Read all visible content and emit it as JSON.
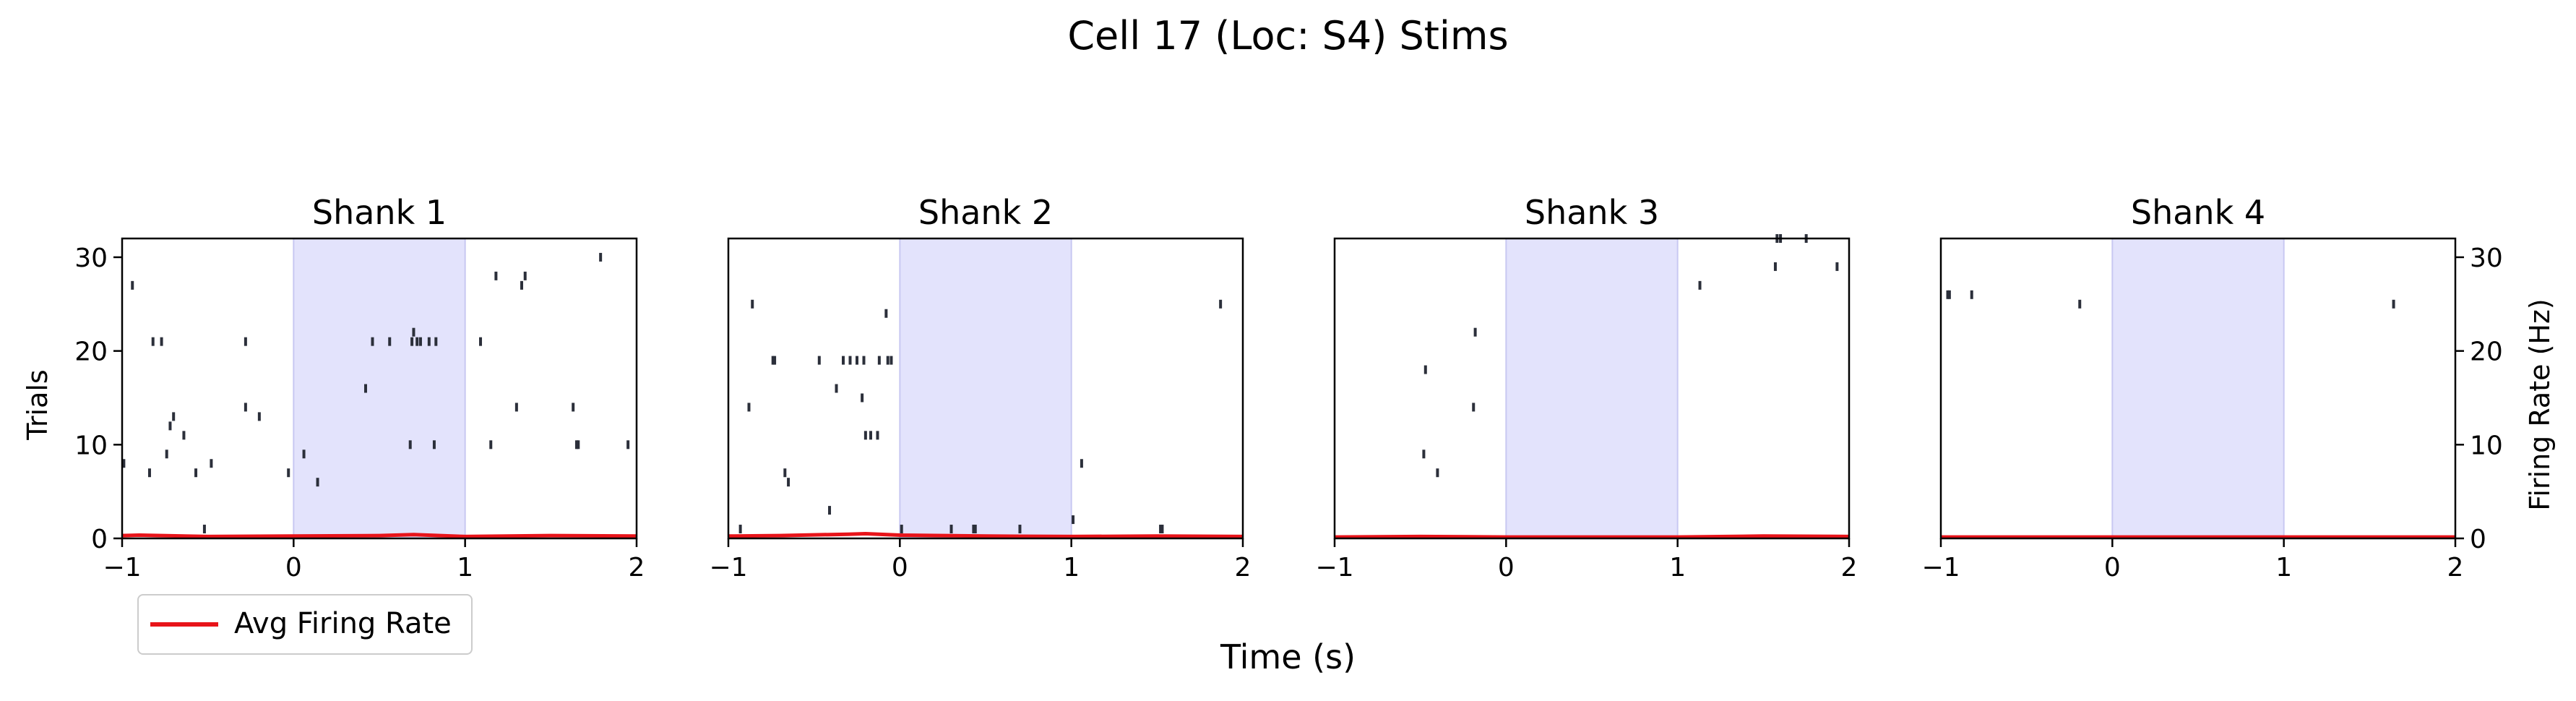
{
  "chart_data": {
    "type": "raster",
    "title": "Cell 17 (Loc: S4) Stims",
    "xlabel": "Time (s)",
    "ylabel_left": "Trials",
    "ylabel_right": "Firing Rate (Hz)",
    "xlim": [
      -1,
      2
    ],
    "ylim": [
      0,
      32
    ],
    "xticks": [
      -1,
      0,
      1,
      2
    ],
    "xtick_labels": [
      "−1",
      "0",
      "1",
      "2"
    ],
    "yticks": [
      0,
      10,
      20,
      30
    ],
    "ytick_labels": [
      "0",
      "10",
      "20",
      "30"
    ],
    "stim_window": [
      0,
      1
    ],
    "colors": {
      "spike": "#2b2f3a",
      "rate": "#e8141a",
      "stim": "#e3e3fc",
      "stim_edge": "#c8c8f2"
    },
    "legend": {
      "label": "Avg Firing Rate",
      "placement": "lower-left, below first panel"
    },
    "panels": [
      {
        "title": "Shank 1",
        "spikes": [
          [
            -0.99,
            8
          ],
          [
            -0.94,
            27
          ],
          [
            -0.84,
            7
          ],
          [
            -0.82,
            21
          ],
          [
            -0.77,
            21
          ],
          [
            -0.74,
            9
          ],
          [
            -0.72,
            12
          ],
          [
            -0.7,
            13
          ],
          [
            -0.64,
            11
          ],
          [
            -0.57,
            7
          ],
          [
            -0.52,
            1
          ],
          [
            -0.48,
            8
          ],
          [
            -0.28,
            21
          ],
          [
            -0.28,
            14
          ],
          [
            -0.2,
            13
          ],
          [
            -0.03,
            7
          ],
          [
            0.06,
            9
          ],
          [
            0.14,
            6
          ],
          [
            0.42,
            16
          ],
          [
            0.46,
            21
          ],
          [
            0.56,
            21
          ],
          [
            0.68,
            10
          ],
          [
            0.69,
            21
          ],
          [
            0.7,
            22
          ],
          [
            0.72,
            21
          ],
          [
            0.74,
            21
          ],
          [
            0.79,
            21
          ],
          [
            0.82,
            10
          ],
          [
            0.83,
            21
          ],
          [
            1.09,
            21
          ],
          [
            1.15,
            10
          ],
          [
            1.18,
            28
          ],
          [
            1.3,
            14
          ],
          [
            1.33,
            27
          ],
          [
            1.35,
            28
          ],
          [
            1.63,
            14
          ],
          [
            1.65,
            10
          ],
          [
            1.66,
            10
          ],
          [
            1.79,
            30
          ],
          [
            1.95,
            10
          ]
        ],
        "rate": [
          [
            -1,
            0.3
          ],
          [
            -0.9,
            0.35
          ],
          [
            -0.5,
            0.2
          ],
          [
            0,
            0.25
          ],
          [
            0.5,
            0.3
          ],
          [
            0.7,
            0.4
          ],
          [
            1,
            0.2
          ],
          [
            1.5,
            0.3
          ],
          [
            2,
            0.25
          ]
        ]
      },
      {
        "title": "Shank 2",
        "spikes": [
          [
            -0.93,
            1
          ],
          [
            -0.88,
            14
          ],
          [
            -0.86,
            25
          ],
          [
            -0.74,
            19
          ],
          [
            -0.73,
            19
          ],
          [
            -0.67,
            7
          ],
          [
            -0.65,
            6
          ],
          [
            -0.47,
            19
          ],
          [
            -0.41,
            3
          ],
          [
            -0.37,
            16
          ],
          [
            -0.33,
            19
          ],
          [
            -0.29,
            19
          ],
          [
            -0.25,
            19
          ],
          [
            -0.22,
            15
          ],
          [
            -0.21,
            19
          ],
          [
            -0.2,
            11
          ],
          [
            -0.17,
            11
          ],
          [
            -0.13,
            11
          ],
          [
            -0.12,
            19
          ],
          [
            -0.08,
            24
          ],
          [
            -0.07,
            19
          ],
          [
            -0.05,
            19
          ],
          [
            0.01,
            1
          ],
          [
            0.3,
            1
          ],
          [
            0.43,
            1
          ],
          [
            0.44,
            1
          ],
          [
            0.7,
            1
          ],
          [
            1.01,
            2
          ],
          [
            1.06,
            8
          ],
          [
            1.52,
            1
          ],
          [
            1.53,
            1
          ],
          [
            1.87,
            25
          ]
        ],
        "rate": [
          [
            -1,
            0.25
          ],
          [
            -0.7,
            0.3
          ],
          [
            -0.3,
            0.45
          ],
          [
            -0.2,
            0.5
          ],
          [
            0,
            0.35
          ],
          [
            0.5,
            0.25
          ],
          [
            1,
            0.2
          ],
          [
            1.5,
            0.25
          ],
          [
            2,
            0.2
          ]
        ]
      },
      {
        "title": "Shank 3",
        "spikes": [
          [
            -0.48,
            9
          ],
          [
            -0.47,
            18
          ],
          [
            -0.4,
            7
          ],
          [
            -0.19,
            14
          ],
          [
            -0.18,
            22
          ],
          [
            1.13,
            27
          ],
          [
            1.57,
            29
          ],
          [
            1.58,
            32
          ],
          [
            1.6,
            32
          ],
          [
            1.75,
            32
          ],
          [
            1.93,
            29
          ]
        ],
        "rate": [
          [
            -1,
            0.15
          ],
          [
            -0.5,
            0.2
          ],
          [
            0,
            0.15
          ],
          [
            0.5,
            0.15
          ],
          [
            1,
            0.15
          ],
          [
            1.5,
            0.25
          ],
          [
            2,
            0.2
          ]
        ]
      },
      {
        "title": "Shank 4",
        "spikes": [
          [
            -0.96,
            26
          ],
          [
            -0.95,
            26
          ],
          [
            -0.82,
            26
          ],
          [
            -0.19,
            25
          ],
          [
            1.64,
            25
          ]
        ],
        "rate": [
          [
            -1,
            0.15
          ],
          [
            0,
            0.15
          ],
          [
            1,
            0.15
          ],
          [
            2,
            0.15
          ]
        ]
      }
    ]
  }
}
